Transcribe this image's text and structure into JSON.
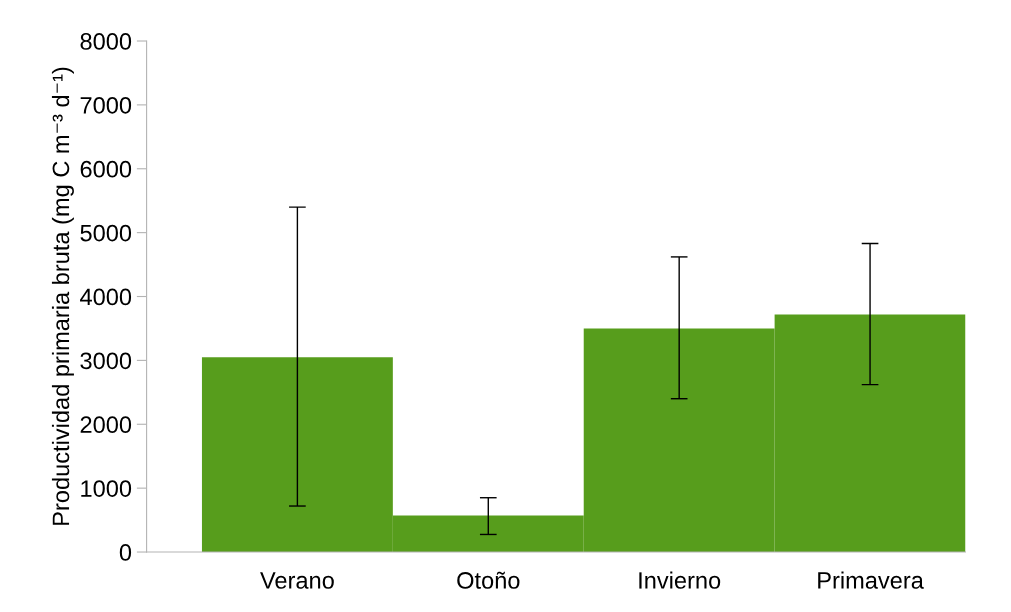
{
  "chart_data": {
    "type": "bar",
    "ylabel": "Productividad primaria bruta (mg C m⁻³ d⁻¹)",
    "categories": [
      "Verano",
      "Otoño",
      "Invierno",
      "Primavera"
    ],
    "values": [
      3050,
      570,
      3500,
      3720
    ],
    "errors": [
      [
        720,
        5400
      ],
      [
        275,
        850
      ],
      [
        2400,
        4620
      ],
      [
        2620,
        4830
      ]
    ],
    "color": "#579d1c",
    "ylim": [
      0,
      8000
    ],
    "yticks": [
      0,
      1000,
      2000,
      3000,
      4000,
      5000,
      6000,
      7000,
      8000
    ],
    "grid": false,
    "legend": false
  }
}
